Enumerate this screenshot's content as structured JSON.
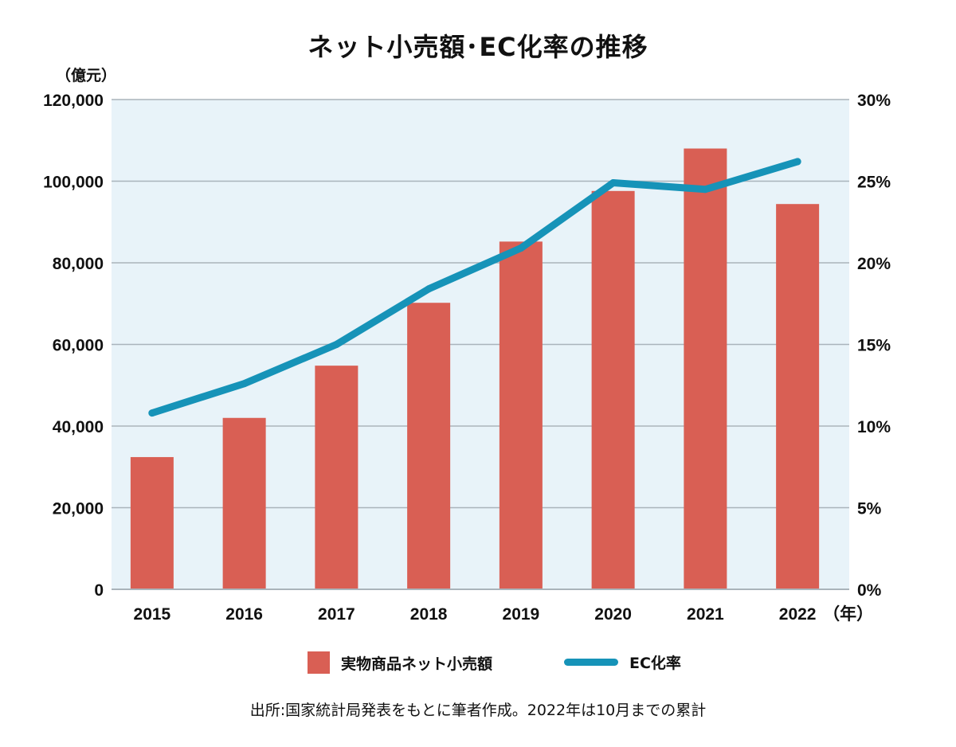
{
  "title": "ネット小売額･EC化率の推移",
  "colors": {
    "bar": "#d95f54",
    "line": "#1693b8",
    "plot_bg": "#e8f3f9",
    "grid": "#aab4bb"
  },
  "legend": {
    "bar_label": "実物商品ネット小売額",
    "line_label": "EC化率"
  },
  "source_note": "出所:国家統計局発表をもとに筆者作成。2022年は10月までの累計",
  "chart_data": {
    "type": "bar",
    "title": "ネット小売額･EC化率の推移",
    "categories": [
      "2015",
      "2016",
      "2017",
      "2018",
      "2019",
      "2020",
      "2021",
      "2022"
    ],
    "x_unit": "（年）",
    "series": [
      {
        "name": "実物商品ネット小売額",
        "type": "bar",
        "axis": "left",
        "values": [
          32400,
          42000,
          54800,
          70200,
          85200,
          97600,
          108000,
          94400
        ]
      },
      {
        "name": "EC化率",
        "type": "line",
        "axis": "right",
        "values": [
          10.8,
          12.6,
          15.0,
          18.4,
          20.9,
          24.9,
          24.5,
          26.2
        ]
      }
    ],
    "left_axis": {
      "unit": "（億元）",
      "ylim": [
        0,
        120000
      ],
      "tick_labels": [
        "0",
        "20,000",
        "40,000",
        "60,000",
        "80,000",
        "100,000",
        "120,000"
      ]
    },
    "right_axis": {
      "ylim": [
        0,
        30
      ],
      "tick_labels": [
        "0%",
        "5%",
        "10%",
        "15%",
        "20%",
        "25%",
        "30%"
      ]
    },
    "grid": true,
    "legend_position": "bottom"
  }
}
